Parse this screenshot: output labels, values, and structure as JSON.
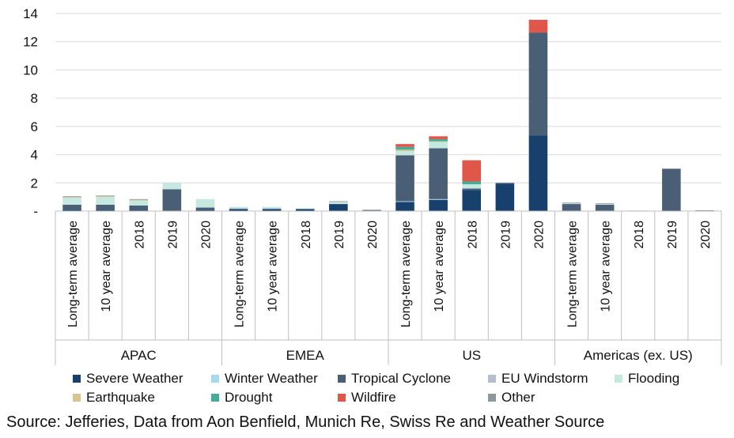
{
  "chart_data": {
    "type": "bar",
    "stacked": true,
    "title": "",
    "xlabel": "",
    "ylabel": "",
    "ylim": [
      0,
      14
    ],
    "y_ticks": [
      "-",
      "2",
      "4",
      "6",
      "8",
      "10",
      "12",
      "14"
    ],
    "grid": true,
    "legend_position": "bottom",
    "groups": [
      {
        "name": "APAC",
        "categories": [
          "Long-term average",
          "10 year average",
          "2018",
          "2019",
          "2020"
        ]
      },
      {
        "name": "EMEA",
        "categories": [
          "Long-term average",
          "10 year average",
          "2018",
          "2019",
          "2020"
        ]
      },
      {
        "name": "US",
        "categories": [
          "Long-term average",
          "10 year average",
          "2018",
          "2019",
          "2020"
        ]
      },
      {
        "name": "Americas (ex. US)",
        "categories": [
          "Long-term average",
          "10 year average",
          "2018",
          "2019",
          "2020"
        ]
      }
    ],
    "series": [
      {
        "name": "Severe Weather",
        "color": "#17406d",
        "values": [
          0.1,
          0.1,
          0.1,
          0.0,
          0.1,
          0.15,
          0.15,
          0.15,
          0.5,
          0.05,
          0.65,
          0.8,
          1.5,
          1.95,
          5.35,
          0.05,
          0.05,
          0.0,
          0.0,
          0.0
        ]
      },
      {
        "name": "Winter Weather",
        "color": "#a9d8ee",
        "values": [
          0.0,
          0.0,
          0.0,
          0.0,
          0.0,
          0.0,
          0.0,
          0.0,
          0.0,
          0.0,
          0.05,
          0.05,
          0.0,
          0.0,
          0.0,
          0.0,
          0.0,
          0.0,
          0.0,
          0.0
        ]
      },
      {
        "name": "Tropical Cyclone",
        "color": "#4a5e75",
        "values": [
          0.35,
          0.35,
          0.3,
          1.55,
          0.15,
          0.0,
          0.0,
          0.0,
          0.0,
          0.0,
          3.25,
          3.6,
          0.1,
          0.05,
          7.3,
          0.45,
          0.4,
          0.0,
          3.0,
          0.05
        ]
      },
      {
        "name": "EU Windstorm",
        "color": "#b4bfcb",
        "values": [
          0.0,
          0.0,
          0.0,
          0.0,
          0.0,
          0.05,
          0.05,
          0.0,
          0.0,
          0.0,
          0.0,
          0.0,
          0.0,
          0.0,
          0.0,
          0.0,
          0.0,
          0.0,
          0.0,
          0.0
        ]
      },
      {
        "name": "Flooding",
        "color": "#c5e9e0",
        "values": [
          0.5,
          0.55,
          0.35,
          0.45,
          0.6,
          0.1,
          0.1,
          0.05,
          0.15,
          0.0,
          0.3,
          0.45,
          0.3,
          0.0,
          0.0,
          0.05,
          0.05,
          0.05,
          0.0,
          0.0
        ]
      },
      {
        "name": "Earthquake",
        "color": "#d8c48f",
        "values": [
          0.05,
          0.05,
          0.05,
          0.0,
          0.0,
          0.0,
          0.0,
          0.0,
          0.0,
          0.0,
          0.1,
          0.05,
          0.0,
          0.0,
          0.0,
          0.0,
          0.0,
          0.0,
          0.0,
          0.0
        ]
      },
      {
        "name": "Drought",
        "color": "#45ad97",
        "values": [
          0.0,
          0.0,
          0.0,
          0.0,
          0.0,
          0.0,
          0.0,
          0.0,
          0.0,
          0.0,
          0.2,
          0.15,
          0.2,
          0.0,
          0.0,
          0.0,
          0.0,
          0.0,
          0.0,
          0.0
        ]
      },
      {
        "name": "Wildfire",
        "color": "#e0574a",
        "values": [
          0.0,
          0.0,
          0.0,
          0.0,
          0.0,
          0.0,
          0.0,
          0.0,
          0.0,
          0.0,
          0.2,
          0.2,
          1.5,
          0.0,
          0.9,
          0.0,
          0.0,
          0.0,
          0.0,
          0.0
        ]
      },
      {
        "name": "Other",
        "color": "#8e969e",
        "values": [
          0.05,
          0.05,
          0.05,
          0.0,
          0.0,
          0.0,
          0.0,
          0.0,
          0.05,
          0.05,
          0.0,
          0.0,
          0.0,
          0.0,
          0.0,
          0.05,
          0.05,
          0.0,
          0.0,
          0.0
        ]
      }
    ]
  },
  "legend_rows": [
    [
      "Severe Weather",
      "Winter Weather",
      "Tropical Cyclone",
      "EU Windstorm",
      "Flooding"
    ],
    [
      "Earthquake",
      "Drought",
      "Wildfire",
      "Other"
    ]
  ],
  "source": "Source: Jefferies, Data from Aon Benfield, Munich Re, Swiss Re and Weather Source"
}
